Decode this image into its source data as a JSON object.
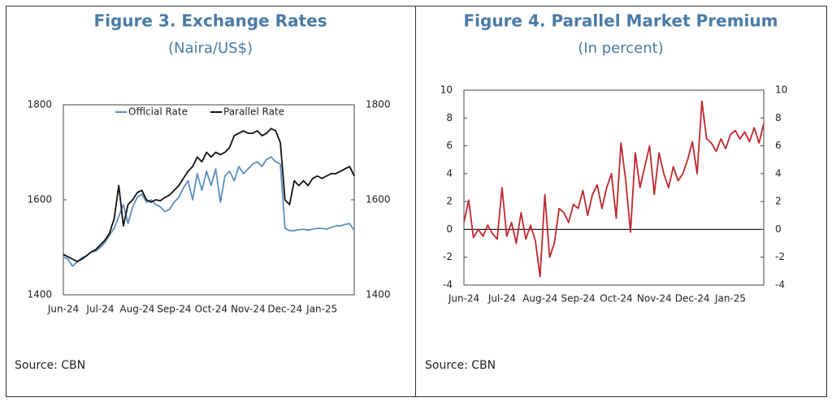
{
  "chart_data": [
    {
      "type": "line",
      "title": "Figure 3. Exchange Rates",
      "subtitle": "(Naira/US$)",
      "source": "Source: CBN",
      "categories": [
        "Jun-24",
        null,
        null,
        null,
        null,
        null,
        null,
        null,
        "Jul-24",
        null,
        null,
        null,
        null,
        null,
        null,
        null,
        "Aug-24",
        null,
        null,
        null,
        null,
        null,
        null,
        null,
        "Sep-24",
        null,
        null,
        null,
        null,
        null,
        null,
        null,
        "Oct-24",
        null,
        null,
        null,
        null,
        null,
        null,
        null,
        "Nov-24",
        null,
        null,
        null,
        null,
        null,
        null,
        null,
        "Dec-24",
        null,
        null,
        null,
        null,
        null,
        null,
        null,
        "Jan-25",
        null,
        null,
        null,
        null,
        null,
        null,
        null
      ],
      "series": [
        {
          "name": "Official Rate",
          "color": "#5b8fc1",
          "values": [
            1480,
            1475,
            1460,
            1470,
            1478,
            1482,
            1490,
            1492,
            1500,
            1510,
            1525,
            1540,
            1565,
            1590,
            1550,
            1585,
            1605,
            1612,
            1595,
            1600,
            1590,
            1585,
            1575,
            1580,
            1595,
            1605,
            1625,
            1640,
            1600,
            1655,
            1620,
            1660,
            1630,
            1665,
            1595,
            1650,
            1660,
            1640,
            1670,
            1655,
            1665,
            1675,
            1680,
            1670,
            1685,
            1690,
            1680,
            1675,
            1540,
            1535,
            1535,
            1537,
            1538,
            1536,
            1538,
            1540,
            1540,
            1538,
            1542,
            1545,
            1545,
            1548,
            1550,
            1535
          ]
        },
        {
          "name": "Parallel Rate",
          "color": "#111111",
          "values": [
            1485,
            1480,
            1475,
            1470,
            1475,
            1482,
            1490,
            1495,
            1505,
            1515,
            1530,
            1560,
            1630,
            1545,
            1590,
            1600,
            1615,
            1620,
            1600,
            1595,
            1600,
            1598,
            1605,
            1610,
            1620,
            1630,
            1645,
            1660,
            1670,
            1690,
            1680,
            1700,
            1690,
            1700,
            1695,
            1700,
            1710,
            1735,
            1740,
            1745,
            1740,
            1740,
            1745,
            1735,
            1740,
            1750,
            1745,
            1720,
            1600,
            1590,
            1640,
            1630,
            1640,
            1630,
            1645,
            1650,
            1645,
            1650,
            1655,
            1655,
            1660,
            1665,
            1670,
            1650
          ]
        }
      ],
      "ylim": [
        1400,
        1800
      ],
      "yticks": [
        1400,
        1600,
        1800
      ],
      "y2lim": [
        1400,
        1800
      ],
      "y2ticks": [
        1400,
        1600,
        1800
      ],
      "legend": "upper center"
    },
    {
      "type": "line",
      "title": "Figure 4. Parallel Market Premium",
      "subtitle": "(In percent)",
      "source": "Source: CBN",
      "categories": [
        "Jun-24",
        null,
        null,
        null,
        null,
        null,
        null,
        null,
        "Jul-24",
        null,
        null,
        null,
        null,
        null,
        null,
        null,
        "Aug-24",
        null,
        null,
        null,
        null,
        null,
        null,
        null,
        "Sep-24",
        null,
        null,
        null,
        null,
        null,
        null,
        null,
        "Oct-24",
        null,
        null,
        null,
        null,
        null,
        null,
        null,
        "Nov-24",
        null,
        null,
        null,
        null,
        null,
        null,
        null,
        "Dec-24",
        null,
        null,
        null,
        null,
        null,
        null,
        null,
        "Jan-25",
        null,
        null,
        null,
        null,
        null,
        null,
        null
      ],
      "values": [
        0.5,
        2.1,
        -0.6,
        0,
        -0.5,
        0.3,
        -0.3,
        -0.7,
        3.0,
        -0.5,
        0.5,
        -1.0,
        1.2,
        -0.7,
        0.3,
        -0.8,
        -3.4,
        2.5,
        -2.0,
        -1.0,
        1.5,
        1.2,
        0.5,
        1.8,
        1.5,
        2.8,
        1.0,
        2.5,
        3.2,
        1.5,
        3.0,
        4.0,
        0.8,
        6.2,
        3.5,
        -0.2,
        5.5,
        3.0,
        4.5,
        6.0,
        2.5,
        5.5,
        4.0,
        3.0,
        4.5,
        3.5,
        4.0,
        5.0,
        6.3,
        4.0,
        9.2,
        6.5,
        6.2,
        5.6,
        6.5,
        5.8,
        6.8,
        7.1,
        6.5,
        7.0,
        6.3,
        7.3,
        6.2,
        7.6
      ],
      "color": "#c0272d",
      "ylim": [
        -4,
        10
      ],
      "yticks": [
        -4,
        -2,
        0,
        2,
        4,
        6,
        8,
        10
      ],
      "y2lim": [
        -4,
        10
      ],
      "y2ticks": [
        -4,
        -2,
        0,
        2,
        4,
        6,
        8,
        10
      ]
    }
  ]
}
